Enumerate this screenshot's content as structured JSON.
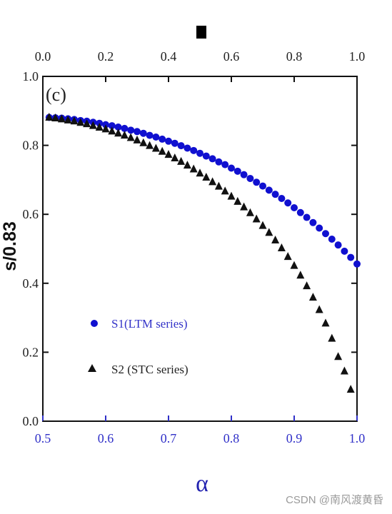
{
  "chart_data": {
    "type": "scatter",
    "panel_label": "(c)",
    "xlabel": "α",
    "ylabel": "s/0.83",
    "xlim": [
      0.5,
      1.0
    ],
    "ylim": [
      0.0,
      1.0
    ],
    "x_ticks": [
      "0.5",
      "0.6",
      "0.7",
      "0.8",
      "0.9",
      "1.0"
    ],
    "top_ticks": [
      "0.0",
      "0.2",
      "0.4",
      "0.6",
      "0.8",
      "1.0"
    ],
    "y_ticks": [
      "0.0",
      "0.2",
      "0.4",
      "0.6",
      "0.8",
      "1.0"
    ],
    "colors": {
      "S1": "#1010d0",
      "S2": "#111111",
      "bottom_axis": "#3030c8"
    },
    "legend_position": "lower-left",
    "series": [
      {
        "name": "S1(LTM series)",
        "marker": "circle",
        "x": [
          0.51,
          0.52,
          0.53,
          0.54,
          0.55,
          0.56,
          0.57,
          0.58,
          0.59,
          0.6,
          0.61,
          0.62,
          0.63,
          0.64,
          0.65,
          0.66,
          0.67,
          0.68,
          0.69,
          0.7,
          0.71,
          0.72,
          0.73,
          0.74,
          0.75,
          0.76,
          0.77,
          0.78,
          0.79,
          0.8,
          0.81,
          0.82,
          0.83,
          0.84,
          0.85,
          0.86,
          0.87,
          0.88,
          0.89,
          0.9,
          0.91,
          0.92,
          0.93,
          0.94,
          0.95,
          0.96,
          0.97,
          0.98,
          0.99,
          1.0
        ],
        "y": [
          0.881,
          0.88,
          0.879,
          0.877,
          0.875,
          0.872,
          0.87,
          0.867,
          0.864,
          0.86,
          0.857,
          0.853,
          0.849,
          0.844,
          0.84,
          0.835,
          0.829,
          0.824,
          0.818,
          0.812,
          0.806,
          0.799,
          0.792,
          0.785,
          0.777,
          0.769,
          0.761,
          0.752,
          0.744,
          0.734,
          0.725,
          0.715,
          0.704,
          0.693,
          0.682,
          0.67,
          0.658,
          0.646,
          0.633,
          0.619,
          0.605,
          0.591,
          0.576,
          0.56,
          0.544,
          0.528,
          0.511,
          0.493,
          0.475,
          0.456
        ]
      },
      {
        "name": "S2 (STC series)",
        "marker": "triangle",
        "x": [
          0.51,
          0.52,
          0.53,
          0.54,
          0.55,
          0.56,
          0.57,
          0.58,
          0.59,
          0.6,
          0.61,
          0.62,
          0.63,
          0.64,
          0.65,
          0.66,
          0.67,
          0.68,
          0.69,
          0.7,
          0.71,
          0.72,
          0.73,
          0.74,
          0.75,
          0.76,
          0.77,
          0.78,
          0.79,
          0.8,
          0.81,
          0.82,
          0.83,
          0.84,
          0.85,
          0.86,
          0.87,
          0.88,
          0.89,
          0.9,
          0.91,
          0.92,
          0.93,
          0.94,
          0.95,
          0.96,
          0.97,
          0.98,
          0.99
        ],
        "y": [
          0.882,
          0.88,
          0.877,
          0.874,
          0.871,
          0.867,
          0.863,
          0.858,
          0.853,
          0.848,
          0.842,
          0.836,
          0.83,
          0.823,
          0.816,
          0.808,
          0.8,
          0.792,
          0.783,
          0.774,
          0.764,
          0.754,
          0.743,
          0.732,
          0.72,
          0.708,
          0.695,
          0.682,
          0.668,
          0.653,
          0.638,
          0.622,
          0.605,
          0.587,
          0.568,
          0.548,
          0.526,
          0.503,
          0.478,
          0.452,
          0.424,
          0.393,
          0.36,
          0.324,
          0.285,
          0.241,
          0.188,
          0.146,
          0.093
        ]
      }
    ]
  },
  "watermark": "CSDN @南风渡黄昏"
}
